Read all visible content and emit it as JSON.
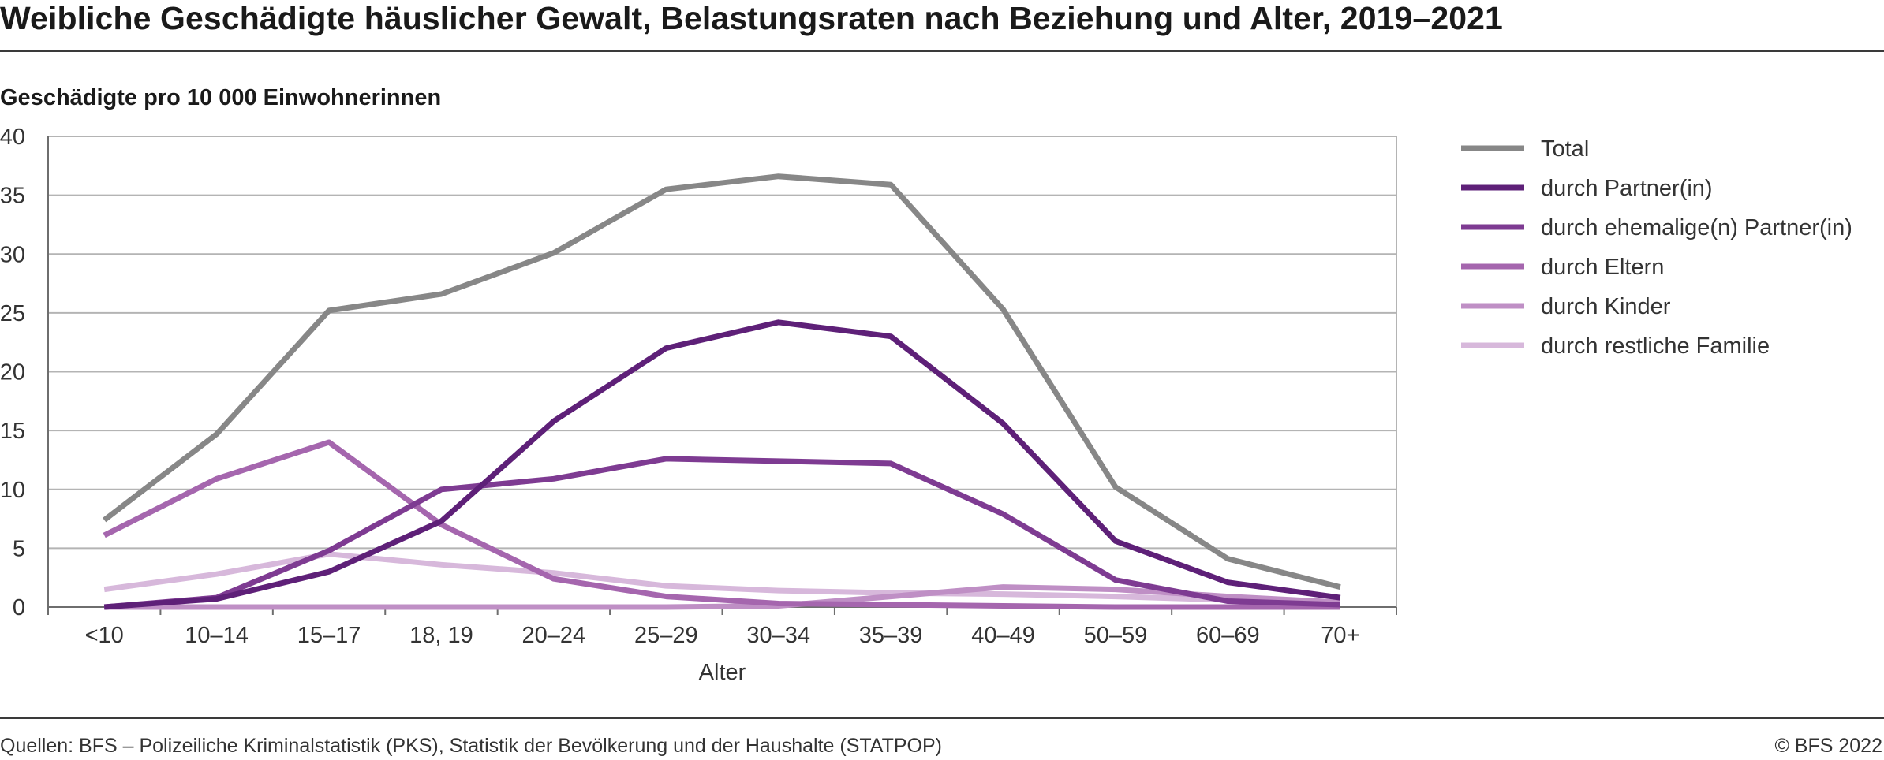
{
  "header": {
    "title": "Weibliche Geschädigte häuslicher Gewalt, Belastungsraten nach Beziehung und Alter, 2019–2021",
    "ylabel": "Geschädigte pro 10 000 Einwohnerinnen"
  },
  "footer": {
    "source": "Quellen: BFS – Polizeiliche Kriminalstatistik (PKS), Statistik der Bevölkerung und der Haushalte (STATPOP)",
    "copyright": "© BFS 2022"
  },
  "chart_data": {
    "type": "line",
    "title": "Weibliche Geschädigte häuslicher Gewalt, Belastungsraten nach Beziehung und Alter, 2019–2021",
    "ylabel": "Geschädigte pro 10 000 Einwohnerinnen",
    "xlabel": "Alter",
    "ylim": [
      0,
      40
    ],
    "yticks": [
      0,
      5,
      10,
      15,
      20,
      25,
      30,
      35,
      40
    ],
    "grid": true,
    "legend_position": "right",
    "categories": [
      "<10",
      "10–14",
      "15–17",
      "18, 19",
      "20–24",
      "25–29",
      "30–34",
      "35–39",
      "40–49",
      "50–59",
      "60–69",
      "70+"
    ],
    "series": [
      {
        "name": "Total",
        "color": "#878787",
        "values": [
          7.4,
          14.7,
          25.2,
          26.6,
          30.1,
          35.5,
          36.6,
          35.9,
          25.3,
          10.2,
          4.1,
          1.7
        ]
      },
      {
        "name": "durch Partner(in)",
        "color": "#5e2078",
        "values": [
          0.0,
          0.7,
          3.0,
          7.3,
          15.8,
          22.0,
          24.2,
          23.0,
          15.6,
          5.6,
          2.1,
          0.8
        ]
      },
      {
        "name": "durch ehemalige(n) Partner(in)",
        "color": "#7e3b92",
        "values": [
          0.0,
          0.8,
          4.8,
          10.0,
          10.9,
          12.6,
          12.4,
          12.2,
          7.9,
          2.3,
          0.5,
          0.2
        ]
      },
      {
        "name": "durch Eltern",
        "color": "#a566ae",
        "values": [
          6.1,
          10.9,
          14.0,
          7.0,
          2.4,
          0.9,
          0.3,
          0.2,
          0.1,
          0.0,
          0.0,
          0.0
        ]
      },
      {
        "name": "durch Kinder",
        "color": "#bf8fc5",
        "values": [
          0.0,
          0.0,
          0.0,
          0.0,
          0.0,
          0.0,
          0.1,
          0.9,
          1.7,
          1.5,
          0.9,
          0.4
        ]
      },
      {
        "name": "durch restliche Familie",
        "color": "#d7b8db",
        "values": [
          1.5,
          2.8,
          4.5,
          3.6,
          2.9,
          1.8,
          1.4,
          1.2,
          1.1,
          0.9,
          0.6,
          0.2
        ]
      }
    ]
  }
}
